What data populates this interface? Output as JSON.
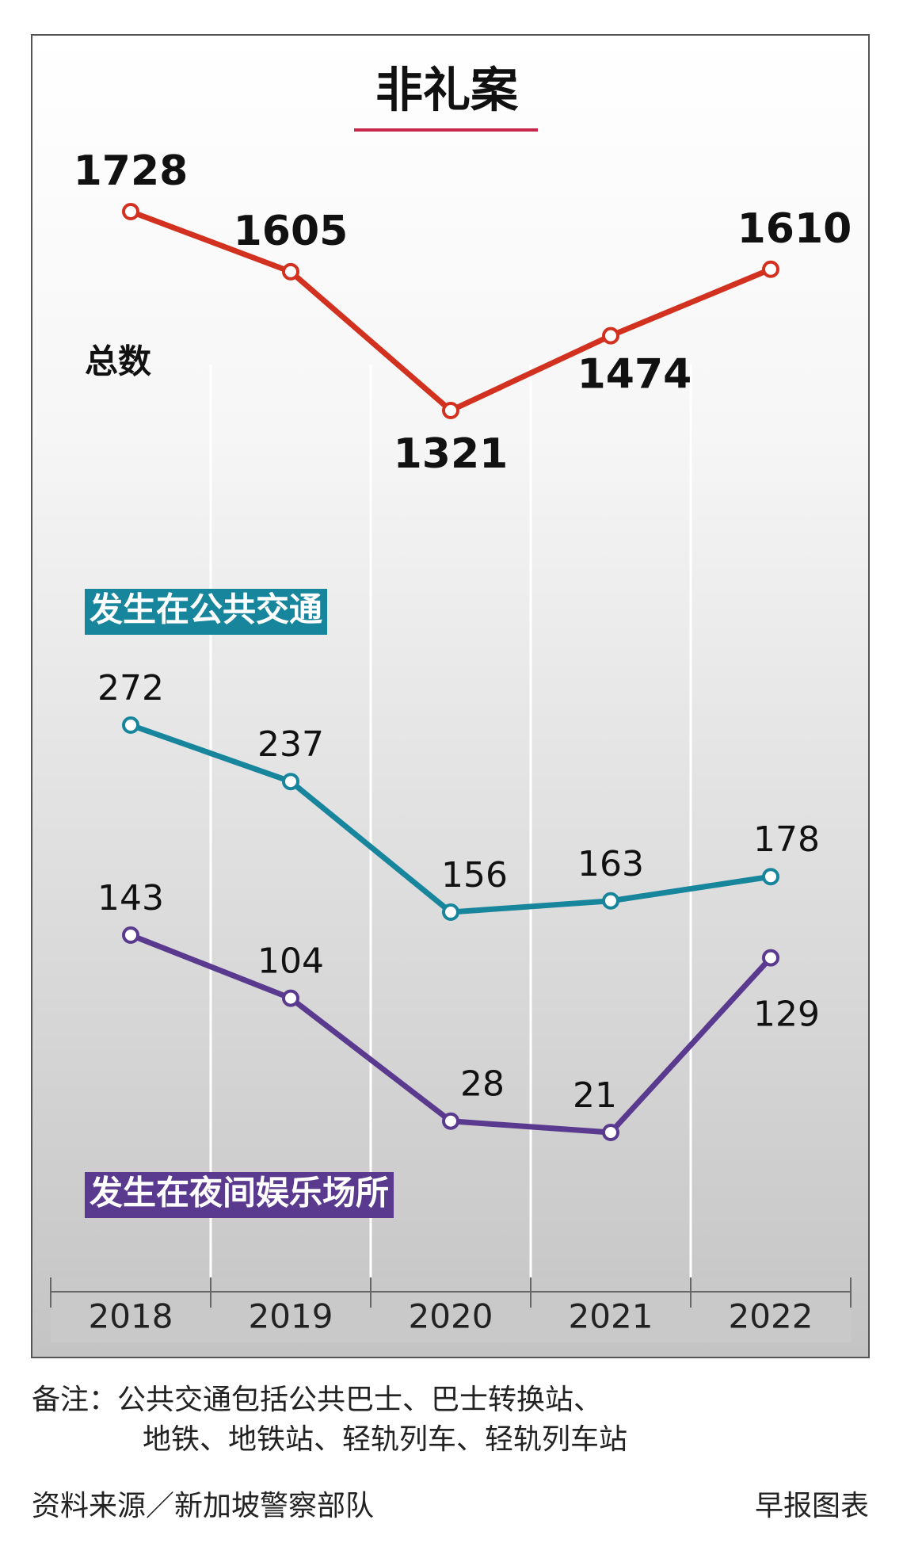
{
  "chart_data": {
    "type": "line",
    "title": "非礼案",
    "categories": [
      "2018",
      "2019",
      "2020",
      "2021",
      "2022"
    ],
    "series": [
      {
        "name": "总数",
        "color": "#d2311f",
        "values": [
          1728,
          1605,
          1321,
          1474,
          1610
        ]
      },
      {
        "name": "发生在公共交通",
        "color": "#17859c",
        "values": [
          272,
          237,
          156,
          163,
          178
        ]
      },
      {
        "name": "发生在夜间娱乐场所",
        "color": "#5a3a8e",
        "values": [
          143,
          104,
          28,
          21,
          129
        ]
      }
    ],
    "notes": [
      "备注：公共交通包括公共巴士、巴士转换站、",
      "地铁、地铁站、轻轨列车、轻轨列车站"
    ],
    "source": "资料来源／新加坡警察部队",
    "credit": "早报图表"
  }
}
